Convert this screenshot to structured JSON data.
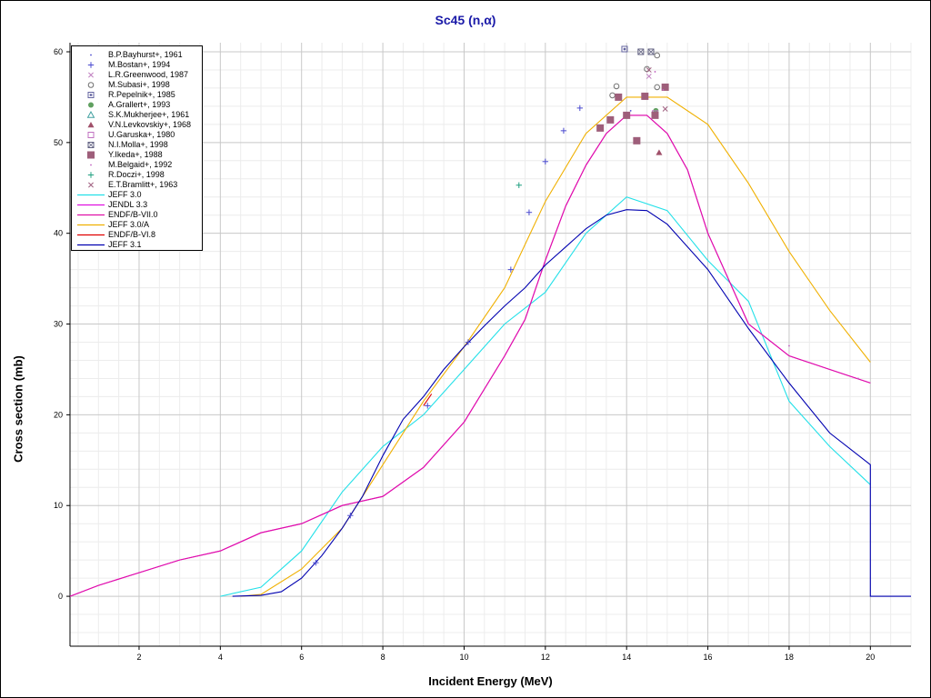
{
  "chart_data": {
    "type": "scatter",
    "title": "Sc45 (n,α)",
    "xlabel": "Incident Energy (MeV)",
    "ylabel": "Cross section (mb)",
    "xlim": [
      0.3,
      21
    ],
    "ylim": [
      -5.5,
      61
    ],
    "xticks": [
      2,
      4,
      6,
      8,
      10,
      12,
      14,
      16,
      18,
      20
    ],
    "yticks": [
      0,
      10,
      20,
      30,
      40,
      50,
      60
    ],
    "grid": true,
    "legend_position": "top-left",
    "markers": [
      {
        "name": "B.P.Bayhurst+, 1961",
        "marker": "dot",
        "color": "#4a4ad0",
        "points": [
          [
            14.1,
            53.5
          ]
        ]
      },
      {
        "name": "M.Bostan+, 1994",
        "marker": "plus",
        "color": "#4a4ad0",
        "points": [
          [
            6.35,
            3.7
          ],
          [
            7.2,
            8.9
          ],
          [
            9.1,
            21.0
          ],
          [
            10.1,
            28.0
          ],
          [
            11.15,
            36.0
          ],
          [
            11.6,
            42.3
          ],
          [
            12.0,
            47.9
          ],
          [
            12.45,
            51.3
          ],
          [
            12.85,
            53.8
          ]
        ]
      },
      {
        "name": "L.R.Greenwood, 1987",
        "marker": "x",
        "color": "#c080c0",
        "points": [
          [
            14.55,
            57.3
          ]
        ]
      },
      {
        "name": "M.Subasi+, 1998",
        "marker": "circle",
        "color": "#707070",
        "points": [
          [
            13.65,
            55.2
          ],
          [
            13.75,
            56.2
          ],
          [
            14.5,
            58.1
          ],
          [
            14.75,
            59.6
          ],
          [
            14.75,
            56.1
          ]
        ]
      },
      {
        "name": "R.Pepelnik+, 1985",
        "marker": "dot-square",
        "color": "#6464a0",
        "points": [
          [
            13.95,
            60.3
          ]
        ]
      },
      {
        "name": "A.Grallert+, 1993",
        "marker": "filled-circle",
        "color": "#60a060",
        "points": [
          [
            14.72,
            53.5
          ]
        ]
      },
      {
        "name": "S.K.Mukherjee+, 1961",
        "marker": "triangle",
        "color": "#40a0a0",
        "points": []
      },
      {
        "name": "V.N.Levkovskiy+, 1968",
        "marker": "filled-triangle",
        "color": "#a0506a",
        "points": [
          [
            14.8,
            48.9
          ]
        ]
      },
      {
        "name": "U.Garuska+, 1980",
        "marker": "square",
        "color": "#c070c0",
        "points": [
          [
            14.7,
            53.2
          ]
        ]
      },
      {
        "name": "N.I.Molla+, 1998",
        "marker": "x-square",
        "color": "#606080",
        "points": [
          [
            14.35,
            60.0
          ],
          [
            14.6,
            60.0
          ]
        ]
      },
      {
        "name": "Y.Ikeda+, 1988",
        "marker": "filled-square",
        "color": "#9e5e7a",
        "points": [
          [
            13.35,
            51.6
          ],
          [
            13.6,
            52.5
          ],
          [
            13.8,
            55.0
          ],
          [
            14.0,
            53.0
          ],
          [
            14.25,
            50.2
          ],
          [
            14.45,
            55.1
          ],
          [
            14.7,
            53.0
          ],
          [
            14.95,
            56.1
          ]
        ]
      },
      {
        "name": "M.Belgaid+, 1992",
        "marker": "dot",
        "color": "#c060c0",
        "points": [
          [
            14.7,
            57.8
          ],
          [
            14.9,
            55.8
          ],
          [
            18.0,
            27.6
          ],
          [
            19.7,
            24.0
          ]
        ]
      },
      {
        "name": "R.Doczi+, 1998",
        "marker": "plus",
        "color": "#20a080",
        "points": [
          [
            11.35,
            45.3
          ]
        ]
      },
      {
        "name": "E.T.Bramlitt+, 1963",
        "marker": "x",
        "color": "#a06080",
        "points": [
          [
            14.95,
            53.7
          ],
          [
            14.55,
            58.0
          ]
        ]
      }
    ],
    "series": [
      {
        "name": "JEFF 3.0",
        "color": "#22e0e8",
        "x": [
          4.0,
          5.0,
          6.0,
          7.0,
          8.0,
          9.0,
          10.0,
          11.0,
          12.0,
          13.0,
          14.0,
          15.0,
          16.0,
          17.0,
          18.0,
          19.0,
          20.0
        ],
        "y": [
          0,
          1.0,
          5.0,
          11.5,
          16.5,
          20.0,
          25.0,
          30.0,
          33.5,
          40.0,
          44.0,
          42.5,
          37.0,
          32.5,
          21.5,
          16.5,
          12.3
        ]
      },
      {
        "name": "JENDL 3.3",
        "color": "#e010e0",
        "x": [
          0.3,
          1.0,
          2.0,
          3.0,
          4.0,
          5.0,
          6.0,
          7.0,
          8.0,
          9.0,
          10.0,
          11.0,
          11.5,
          12.0,
          12.5,
          13.0,
          13.5,
          14.0,
          14.5,
          15.0,
          15.5,
          16.0,
          17.0,
          18.0,
          19.0,
          20.0
        ],
        "y": [
          0,
          1.2,
          2.6,
          4.0,
          5.0,
          7.0,
          8.0,
          10.0,
          11.0,
          14.2,
          19.2,
          26.5,
          30.5,
          37.0,
          43.0,
          47.5,
          51.0,
          53.0,
          53.0,
          51.0,
          47.0,
          40.0,
          30.0,
          26.5,
          25.0,
          23.5
        ]
      },
      {
        "name": "ENDF/B-VII.0",
        "color": "#e010a8",
        "x": [
          0.3,
          1.0,
          2.0,
          3.0,
          4.0,
          5.0,
          6.0,
          7.0,
          8.0,
          9.0,
          10.0,
          11.0,
          11.5,
          12.0,
          12.5,
          13.0,
          13.5,
          14.0,
          14.5,
          15.0,
          15.5,
          16.0,
          17.0,
          18.0,
          19.0,
          20.0
        ],
        "y": [
          0,
          1.2,
          2.6,
          4.0,
          5.0,
          7.0,
          8.0,
          10.0,
          11.0,
          14.2,
          19.2,
          26.5,
          30.5,
          37.0,
          43.0,
          47.5,
          51.0,
          53.0,
          53.0,
          51.0,
          47.0,
          40.0,
          30.0,
          26.5,
          25.0,
          23.5
        ]
      },
      {
        "name": "JEFF 3.0/A",
        "color": "#f0b000",
        "x": [
          4.5,
          5.0,
          6.0,
          7.0,
          8.0,
          9.0,
          10.0,
          11.0,
          12.0,
          13.0,
          14.0,
          15.0,
          16.0,
          17.0,
          18.0,
          19.0,
          20.0
        ],
        "y": [
          0,
          0.2,
          3.0,
          7.5,
          14.5,
          21.5,
          27.5,
          34.0,
          43.5,
          51.0,
          55.0,
          55.0,
          52.0,
          45.5,
          38.0,
          31.5,
          25.8
        ]
      },
      {
        "name": "ENDF/B-VI.8",
        "color": "#e00000",
        "x": [
          9.0,
          9.2
        ],
        "y": [
          21.0,
          22.3
        ]
      },
      {
        "name": "JEFF 3.1",
        "color": "#0000b0",
        "x": [
          4.3,
          5.0,
          5.5,
          6.0,
          6.5,
          7.0,
          7.5,
          8.0,
          8.5,
          9.0,
          9.5,
          10.0,
          10.5,
          11.0,
          11.5,
          12.0,
          12.5,
          13.0,
          13.5,
          14.0,
          14.5,
          15.0,
          16.0,
          17.0,
          18.0,
          19.0,
          20.0,
          20.0,
          21.0
        ],
        "y": [
          0,
          0.1,
          0.5,
          2.0,
          4.5,
          7.5,
          11.0,
          15.5,
          19.5,
          22.0,
          25.0,
          27.5,
          29.8,
          32.0,
          34.0,
          36.5,
          38.5,
          40.5,
          42.0,
          42.6,
          42.5,
          41.0,
          36.0,
          29.5,
          23.5,
          18.0,
          14.5,
          0,
          0
        ]
      }
    ]
  }
}
